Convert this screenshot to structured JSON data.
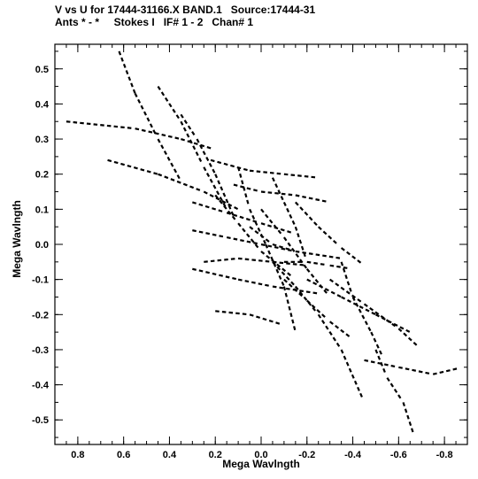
{
  "header": {
    "line1": "V vs U for 17444-31166.X BAND.1   Source:17444-31",
    "line2": "Ants * - *     Stokes I   IF# 1 - 2   Chan# 1"
  },
  "chart_data": {
    "type": "scatter",
    "xlabel": "Mega Wavlngth",
    "ylabel": "Mega Wavlngth",
    "xlim": [
      0.9,
      -0.9
    ],
    "ylim": [
      -0.57,
      0.57
    ],
    "x_ticks": [
      0.8,
      0.6,
      0.4,
      0.2,
      0.0,
      -0.2,
      -0.4,
      -0.6,
      -0.8
    ],
    "y_ticks": [
      0.5,
      0.4,
      0.3,
      0.2,
      0.1,
      0.0,
      -0.1,
      -0.2,
      -0.3,
      -0.4,
      -0.5
    ],
    "x_tick_labels": [
      "0.8",
      "0.6",
      "0.4",
      "0.2",
      "0.0",
      "-0.2",
      "-0.4",
      "-0.6",
      "-0.8"
    ],
    "y_tick_labels": [
      "0.5",
      "0.4",
      "0.3",
      "0.2",
      "0.1",
      "0.0",
      "-0.1",
      "-0.2",
      "-0.3",
      "-0.4",
      "-0.5"
    ],
    "color": "#000000",
    "tracks": [
      [
        [
          0.85,
          0.35
        ],
        [
          0.55,
          0.33
        ],
        [
          0.35,
          0.3
        ],
        [
          0.2,
          0.27
        ]
      ],
      [
        [
          0.67,
          0.24
        ],
        [
          0.45,
          0.2
        ],
        [
          0.25,
          0.15
        ],
        [
          0.1,
          0.1
        ]
      ],
      [
        [
          0.62,
          0.55
        ],
        [
          0.55,
          0.43
        ],
        [
          0.45,
          0.3
        ],
        [
          0.35,
          0.18
        ]
      ],
      [
        [
          0.45,
          0.45
        ],
        [
          0.35,
          0.35
        ],
        [
          0.25,
          0.22
        ],
        [
          0.15,
          0.1
        ]
      ],
      [
        [
          0.35,
          0.37
        ],
        [
          0.28,
          0.3
        ],
        [
          0.2,
          0.2
        ],
        [
          0.12,
          0.08
        ]
      ],
      [
        [
          0.22,
          0.24
        ],
        [
          0.05,
          0.21
        ],
        [
          -0.1,
          0.2
        ],
        [
          -0.25,
          0.19
        ]
      ],
      [
        [
          0.12,
          0.17
        ],
        [
          0.0,
          0.15
        ],
        [
          -0.15,
          0.14
        ],
        [
          -0.3,
          0.12
        ]
      ],
      [
        [
          0.2,
          0.14
        ],
        [
          0.1,
          0.06
        ],
        [
          0.0,
          -0.02
        ],
        [
          -0.15,
          -0.1
        ]
      ],
      [
        [
          0.3,
          0.12
        ],
        [
          0.15,
          0.09
        ],
        [
          0.0,
          0.06
        ],
        [
          -0.15,
          0.03
        ]
      ],
      [
        [
          0.3,
          0.04
        ],
        [
          0.15,
          0.02
        ],
        [
          0.0,
          0.0
        ],
        [
          -0.15,
          -0.02
        ],
        [
          -0.35,
          -0.04
        ]
      ],
      [
        [
          0.25,
          -0.05
        ],
        [
          0.1,
          -0.04
        ],
        [
          -0.05,
          -0.05
        ],
        [
          -0.2,
          -0.06
        ]
      ],
      [
        [
          0.3,
          -0.07
        ],
        [
          0.1,
          -0.1
        ],
        [
          -0.05,
          -0.12
        ],
        [
          -0.25,
          -0.14
        ]
      ],
      [
        [
          0.2,
          -0.19
        ],
        [
          0.05,
          -0.2
        ],
        [
          -0.1,
          -0.23
        ]
      ],
      [
        [
          0.1,
          0.22
        ],
        [
          0.05,
          0.1
        ],
        [
          -0.02,
          0.0
        ],
        [
          -0.1,
          -0.12
        ],
        [
          -0.15,
          -0.25
        ]
      ],
      [
        [
          -0.05,
          0.19
        ],
        [
          -0.1,
          0.12
        ],
        [
          -0.15,
          0.05
        ],
        [
          -0.2,
          -0.05
        ]
      ],
      [
        [
          -0.15,
          0.12
        ],
        [
          -0.25,
          0.05
        ],
        [
          -0.35,
          -0.01
        ],
        [
          -0.45,
          -0.06
        ]
      ],
      [
        [
          0.0,
          0.1
        ],
        [
          -0.1,
          0.02
        ],
        [
          -0.2,
          -0.07
        ],
        [
          -0.3,
          -0.15
        ]
      ],
      [
        [
          -0.05,
          -0.05
        ],
        [
          -0.15,
          -0.12
        ],
        [
          -0.25,
          -0.2
        ],
        [
          -0.35,
          -0.3
        ],
        [
          -0.45,
          -0.45
        ]
      ],
      [
        [
          -0.1,
          -0.1
        ],
        [
          -0.2,
          -0.16
        ],
        [
          -0.3,
          -0.22
        ],
        [
          -0.4,
          -0.27
        ]
      ],
      [
        [
          -0.2,
          -0.1
        ],
        [
          -0.35,
          -0.15
        ],
        [
          -0.5,
          -0.2
        ],
        [
          -0.65,
          -0.25
        ]
      ],
      [
        [
          -0.3,
          -0.1
        ],
        [
          -0.45,
          -0.17
        ],
        [
          -0.6,
          -0.24
        ],
        [
          -0.7,
          -0.3
        ]
      ],
      [
        [
          -0.35,
          -0.05
        ],
        [
          -0.4,
          -0.15
        ],
        [
          -0.48,
          -0.25
        ],
        [
          -0.53,
          -0.32
        ]
      ],
      [
        [
          -0.45,
          -0.33
        ],
        [
          -0.6,
          -0.35
        ],
        [
          -0.75,
          -0.37
        ],
        [
          -0.88,
          -0.35
        ]
      ],
      [
        [
          -0.5,
          -0.3
        ],
        [
          -0.55,
          -0.38
        ],
        [
          -0.62,
          -0.45
        ],
        [
          -0.67,
          -0.55
        ]
      ],
      [
        [
          -0.1,
          -0.05
        ],
        [
          -0.2,
          -0.05
        ],
        [
          -0.3,
          -0.06
        ],
        [
          -0.4,
          -0.07
        ]
      ],
      [
        [
          0.05,
          0.05
        ],
        [
          -0.05,
          0.0
        ],
        [
          -0.15,
          -0.02
        ]
      ]
    ]
  }
}
